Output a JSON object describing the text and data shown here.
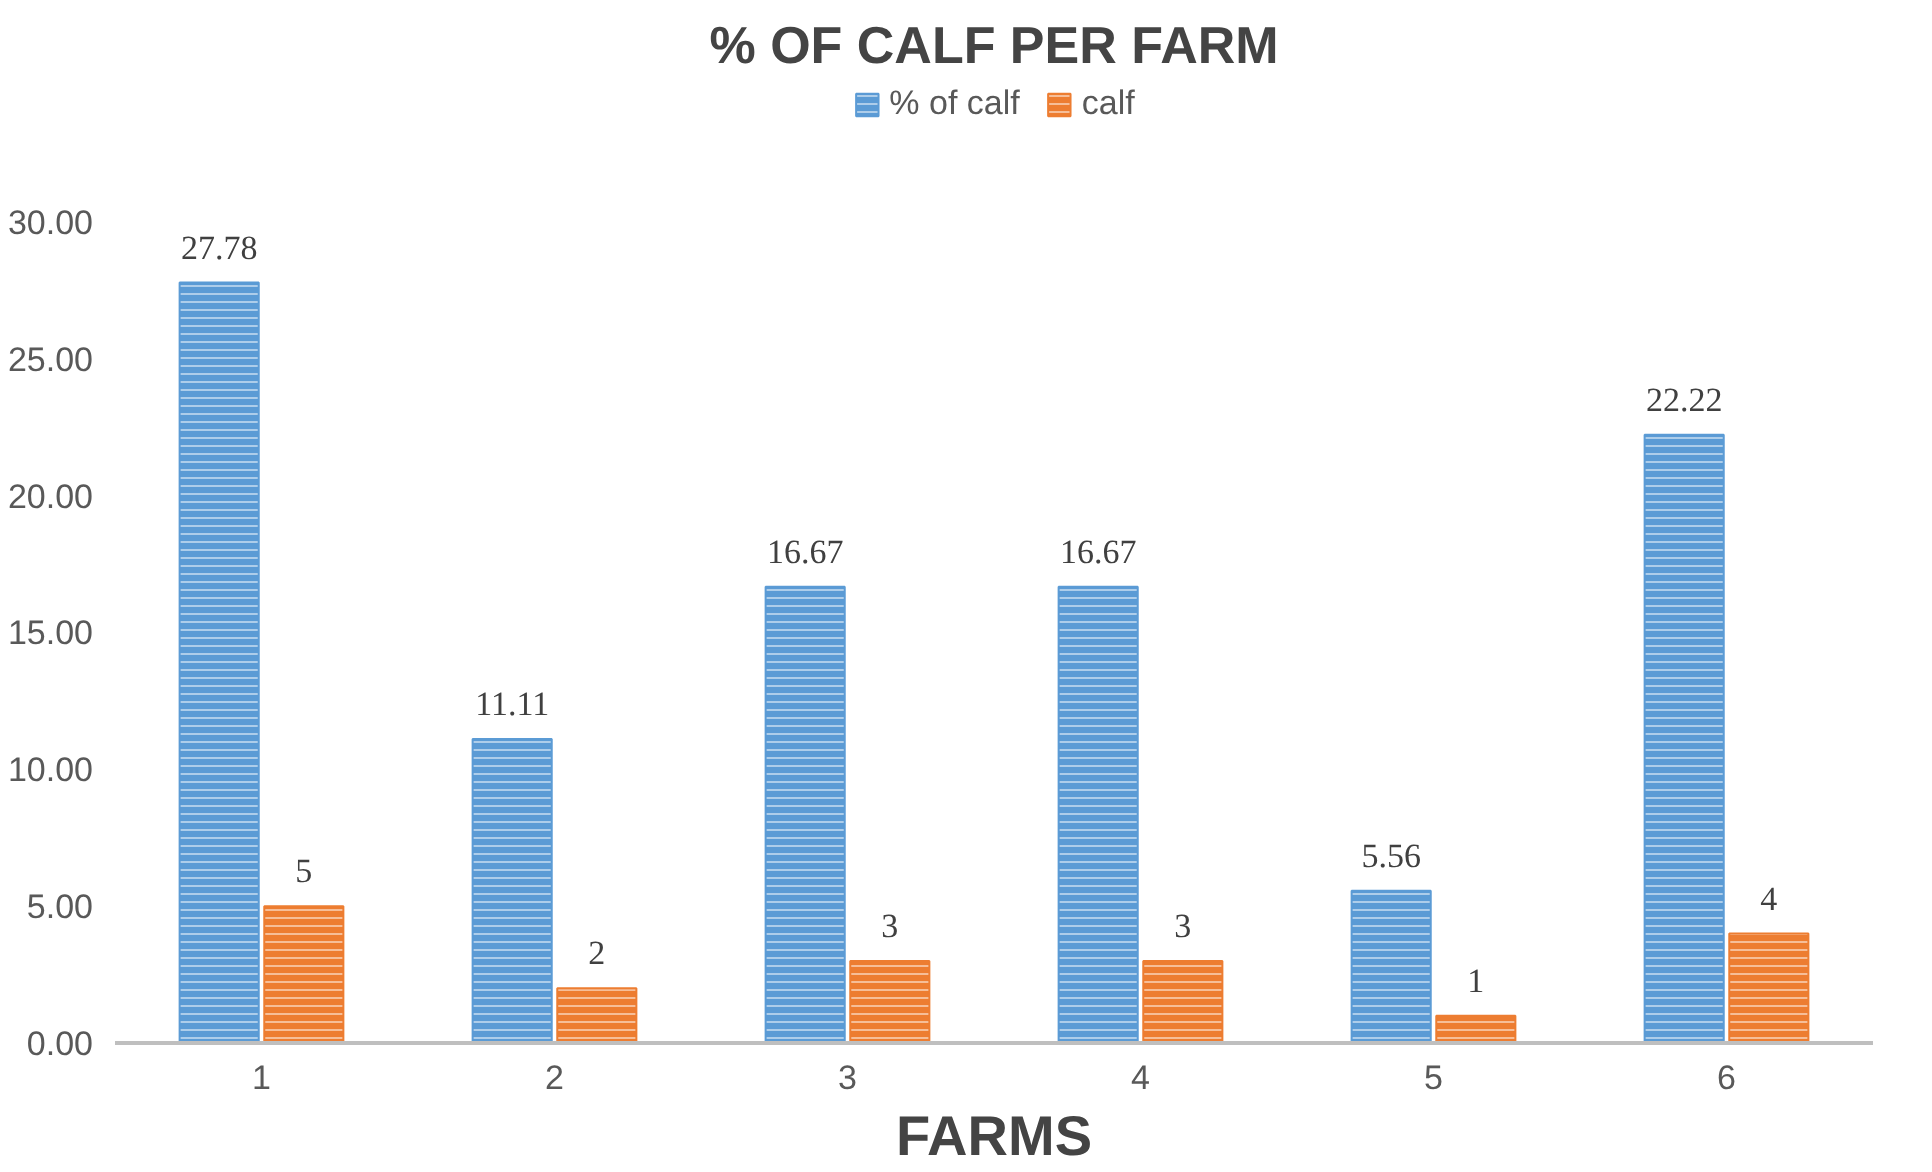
{
  "chart_data": {
    "type": "bar",
    "title": "% OF CALF PER FARM",
    "xlabel": "FARMS",
    "categories": [
      "1",
      "2",
      "3",
      "4",
      "5",
      "6"
    ],
    "series": [
      {
        "name": "% of calf",
        "color": "#5b9bd5",
        "values": [
          27.78,
          11.11,
          16.67,
          16.67,
          5.56,
          22.22
        ]
      },
      {
        "name": "calf",
        "color": "#ed7d31",
        "values": [
          5,
          2,
          3,
          3,
          1,
          4
        ]
      }
    ],
    "ylim": [
      0,
      35
    ],
    "yticks": [
      {
        "value": 0,
        "label": "0.00"
      },
      {
        "value": 5,
        "label": "5.00"
      },
      {
        "value": 10,
        "label": "10.00"
      },
      {
        "value": 15,
        "label": "15.00"
      },
      {
        "value": 20,
        "label": "20.00"
      },
      {
        "value": 25,
        "label": "25.00"
      },
      {
        "value": 30,
        "label": "30.00"
      }
    ],
    "data_labels": true,
    "legend": "top",
    "grid": false
  }
}
